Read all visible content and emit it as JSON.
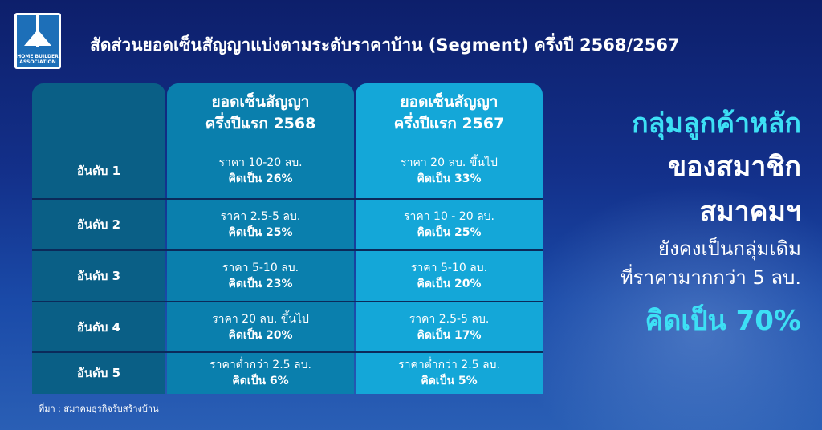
{
  "logo": {
    "text": "HOME BUILDER ASSOCIATION"
  },
  "title": "สัดส่วนยอดเซ็นสัญญาแบ่งตามระดับราคาบ้าน (Segment) ครึ่งปี 2568/2567",
  "table": {
    "headers": [
      {
        "line1": "ยอดเซ็นสัญญา",
        "line2": "ครึ่งปีแรก 2568"
      },
      {
        "line1": "ยอดเซ็นสัญญา",
        "line2": "ครึ่งปีแรก 2567"
      }
    ],
    "rows": [
      {
        "rank": "อันดับ 1",
        "y2568": {
          "price": "ราคา 10-20 ลบ.",
          "share": "คิดเป็น 26%"
        },
        "y2567": {
          "price": "ราคา 20 ลบ. ขึ้นไป",
          "share": "คิดเป็น 33%"
        }
      },
      {
        "rank": "อันดับ 2",
        "y2568": {
          "price": "ราคา 2.5-5 ลบ.",
          "share": "คิดเป็น 25%"
        },
        "y2567": {
          "price": "ราคา 10 - 20 ลบ.",
          "share": "คิดเป็น 25%"
        }
      },
      {
        "rank": "อันดับ 3",
        "y2568": {
          "price": "ราคา 5-10 ลบ.",
          "share": "คิดเป็น 23%"
        },
        "y2567": {
          "price": "ราคา 5-10 ลบ.",
          "share": "คิดเป็น 20%"
        }
      },
      {
        "rank": "อันดับ 4",
        "y2568": {
          "price": "ราคา 20 ลบ. ขึ้นไป",
          "share": "คิดเป็น 20%"
        },
        "y2567": {
          "price": "ราคา 2.5-5 ลบ.",
          "share": "คิดเป็น 17%"
        }
      },
      {
        "rank": "อันดับ 5",
        "y2568": {
          "price": "ราคาต่ำกว่า 2.5 ลบ.",
          "share": "คิดเป็น 6%"
        },
        "y2567": {
          "price": "ราคาต่ำกว่า 2.5 ลบ.",
          "share": "คิดเป็น 5%"
        }
      }
    ]
  },
  "summary": {
    "line1": "กลุ่มลูกค้าหลัก",
    "line2": "ของสมาชิก",
    "line3": "สมาคมฯ",
    "line4": "ยังคงเป็นกลุ่มเดิม",
    "line5": "ที่ราคามากกว่า 5 ลบ.",
    "line6": "คิดเป็น 70%"
  },
  "source": "ที่มา : สมาคมธุรกิจรับสร้างบ้าน",
  "colors": {
    "accent": "#3de0f5",
    "col2568": "#0a7fad",
    "col2567": "#14a7d8"
  }
}
